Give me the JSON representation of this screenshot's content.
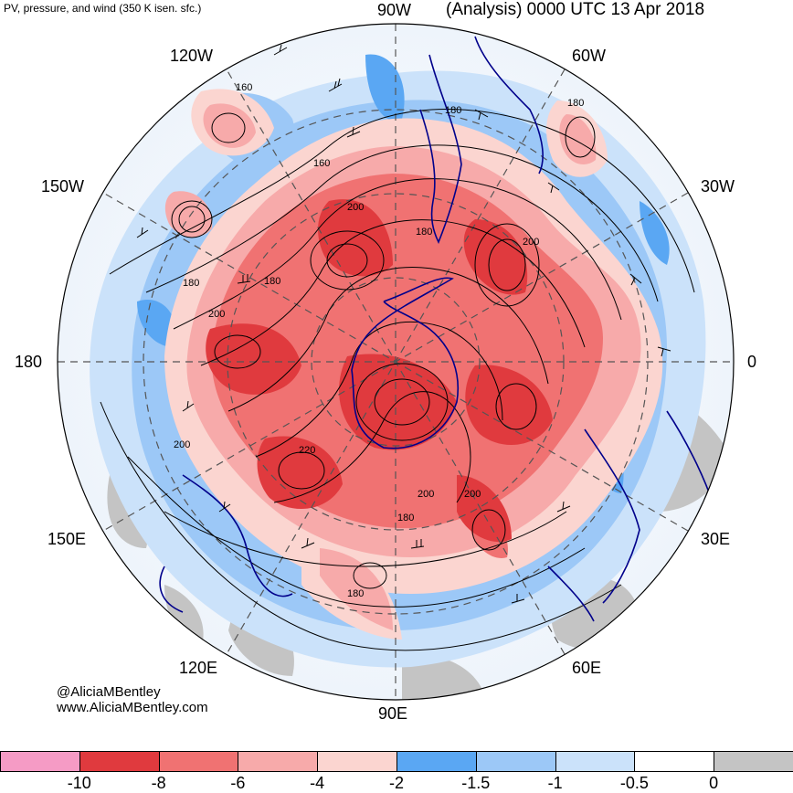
{
  "header": {
    "subtitle": "PV, pressure, and wind (350 K isen. sfc.)",
    "title": "(Analysis) 0000 UTC 13 Apr 2018"
  },
  "longitude_labels": [
    "90W",
    "60W",
    "30W",
    "0",
    "30E",
    "60E",
    "90E",
    "120E",
    "150E",
    "180",
    "150W",
    "120W"
  ],
  "contour_labels": [
    "160",
    "160",
    "180",
    "180",
    "200",
    "180",
    "200",
    "180",
    "180",
    "200",
    "200",
    "220",
    "200",
    "200",
    "180",
    "180"
  ],
  "credits": {
    "twitter": "@AliciaMBentley",
    "website": "www.AliciaMBentley.com"
  },
  "colorbar": {
    "colors": [
      "#f59bc5",
      "#e03a3e",
      "#f07272",
      "#f7aaaa",
      "#fbd5d0",
      "#5aa7f3",
      "#9cc8f7",
      "#cbe2fa",
      "#ffffff",
      "#c4c4c4"
    ],
    "labels": [
      "-10",
      "-8",
      "-6",
      "-4",
      "-2",
      "-1.5",
      "-1",
      "-0.5",
      "0"
    ]
  },
  "colors": {
    "coastline": "#00008b",
    "contour": "#000000",
    "graticule": "#555555"
  }
}
